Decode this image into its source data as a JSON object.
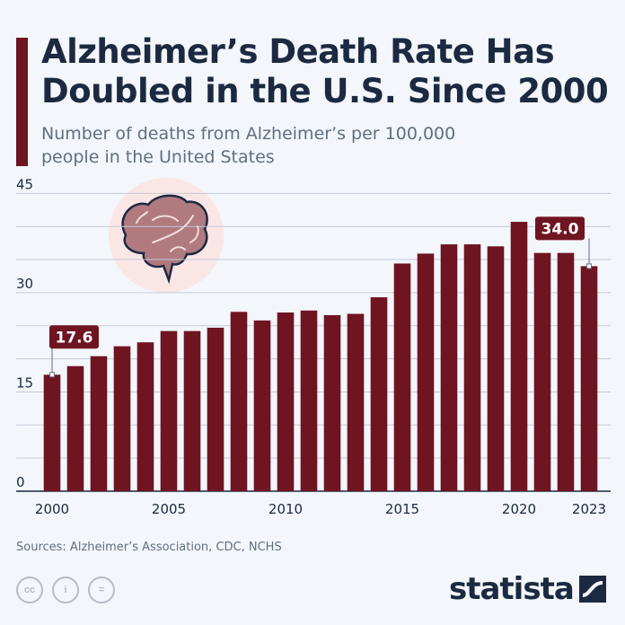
{
  "title": "Alzheimer’s Death Rate Has Doubled in the U.S. Since 2000",
  "subtitle": "Number of deaths from Alzheimer’s per 100,000 people in the United States",
  "source": "Sources: Alzheimer’s Association, CDC, NCHS",
  "brand": "statista",
  "icons": [
    "brain-icon",
    "creative-commons-icon",
    "attribution-icon",
    "no-derivatives-icon"
  ],
  "colors": {
    "bar": "#6f1421",
    "title": "#1b2a41",
    "background": "#f3f6fa"
  },
  "chart_data": {
    "type": "bar",
    "categories": [
      "2000",
      "2001",
      "2002",
      "2003",
      "2004",
      "2005",
      "2006",
      "2007",
      "2008",
      "2009",
      "2010",
      "2011",
      "2012",
      "2013",
      "2014",
      "2015",
      "2016",
      "2017",
      "2018",
      "2019",
      "2020",
      "2021",
      "2022",
      "2023"
    ],
    "values": [
      17.6,
      18.9,
      20.4,
      21.9,
      22.5,
      24.2,
      24.2,
      24.7,
      27.1,
      25.8,
      27.0,
      27.3,
      26.6,
      26.8,
      29.3,
      34.4,
      35.9,
      37.3,
      37.3,
      37.0,
      40.7,
      36.0,
      36.0,
      34.0
    ],
    "xticks": [
      "2000",
      "2005",
      "2010",
      "2015",
      "2020",
      "2023"
    ],
    "yticks": [
      "0",
      "15",
      "30",
      "45"
    ],
    "ylim": [
      0,
      45
    ],
    "grid": true,
    "annotations": [
      {
        "category": "2000",
        "label": "17.6"
      },
      {
        "category": "2023",
        "label": "34.0"
      }
    ]
  }
}
